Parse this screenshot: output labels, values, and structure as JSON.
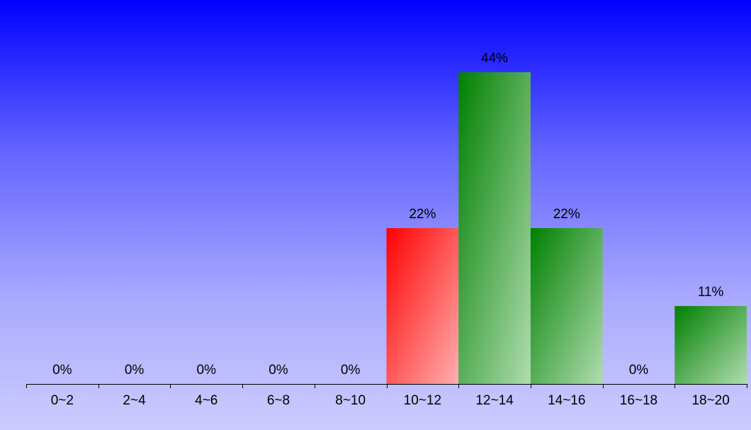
{
  "chart_data": {
    "type": "bar",
    "categories": [
      "0~2",
      "2~4",
      "4~6",
      "6~8",
      "8~10",
      "10~12",
      "12~14",
      "14~16",
      "16~18",
      "18~20"
    ],
    "values": [
      0,
      0,
      0,
      0,
      0,
      22,
      44,
      22,
      0,
      11
    ],
    "value_labels": [
      "0%",
      "0%",
      "0%",
      "0%",
      "0%",
      "22%",
      "44%",
      "22%",
      "0%",
      "11%"
    ],
    "highlight_index": 5,
    "ylim": [
      0,
      44
    ],
    "unit": "%",
    "grid": false,
    "legend": "none",
    "colors": {
      "normal_start": "#008000",
      "normal_end": "#b0dcb0",
      "highlight_start": "#ff0000",
      "highlight_end": "#ffb0b0",
      "axis": "#000000",
      "text": "#000000"
    }
  }
}
